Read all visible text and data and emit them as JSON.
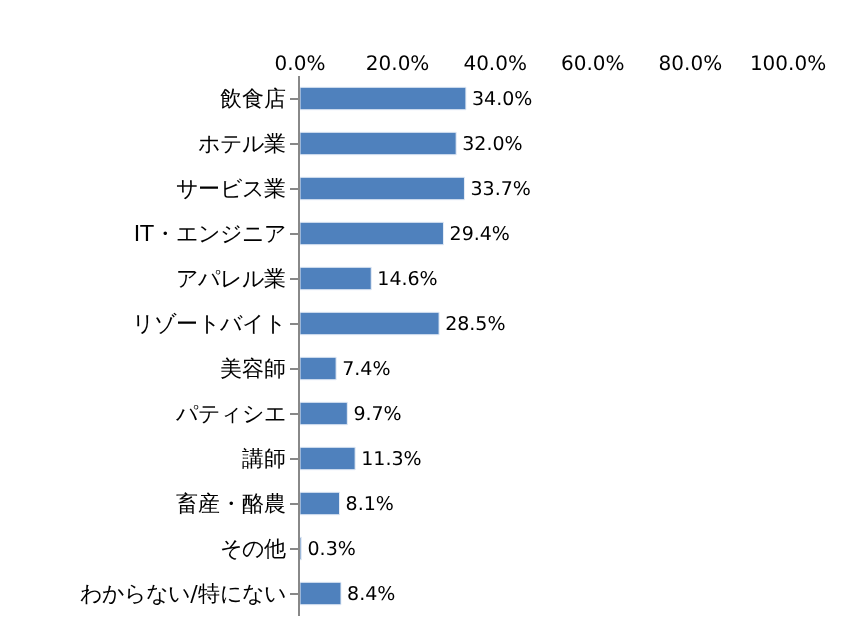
{
  "chart_data": {
    "type": "bar",
    "orientation": "horizontal",
    "categories": [
      "飲食店",
      "ホテル業",
      "サービス業",
      "IT・エンジニア",
      "アパレル業",
      "リゾートバイト",
      "美容師",
      "パティシエ",
      "講師",
      "畜産・酪農",
      "その他",
      "わからない/特にない"
    ],
    "values": [
      34.0,
      32.0,
      33.7,
      29.4,
      14.6,
      28.5,
      7.4,
      9.7,
      11.3,
      8.1,
      0.3,
      8.4
    ],
    "value_labels": [
      "34.0%",
      "32.0%",
      "33.7%",
      "29.4%",
      "14.6%",
      "28.5%",
      "7.4%",
      "9.7%",
      "11.3%",
      "8.1%",
      "0.3%",
      "8.4%"
    ],
    "color": "#4f81bd",
    "xlim": [
      0,
      100
    ],
    "xticks": [
      {
        "value": 0,
        "label": "0.0%"
      },
      {
        "value": 20,
        "label": "20.0%"
      },
      {
        "value": 40,
        "label": "40.0%"
      },
      {
        "value": 60,
        "label": "60.0%"
      },
      {
        "value": 80,
        "label": "80.0%"
      },
      {
        "value": 100,
        "label": "100.0%"
      }
    ],
    "legend": false
  }
}
